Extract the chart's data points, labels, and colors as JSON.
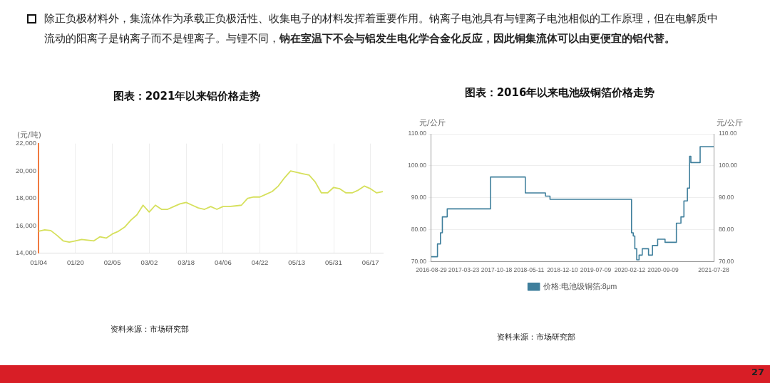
{
  "chart_data": [
    {
      "type": "other",
      "annotations": [
        "除正负极材料外，集流体作为承载正负极活性、收集电子的材料发挥着重要作用。钠离子电池具有与锂离子电池相似的工作原理，但在电解质中流动的阳离子是钠离子而不是锂离子。与锂不同，",
        "钠在室温下不会与铝发生电化学合金化反应，因此铜集流体可以由更便宜的铝代替。",
        "27"
      ]
    },
    {
      "type": "line",
      "title": "图表：2021年以来铝价格走势",
      "ylabel": "(元/吨)",
      "annotations": [
        "资料来源：市场研究部"
      ],
      "categories": [
        "01/04",
        null,
        null,
        null,
        null,
        null,
        "01/20",
        null,
        null,
        null,
        null,
        null,
        "02/05",
        null,
        null,
        null,
        null,
        null,
        "03/02",
        null,
        null,
        null,
        null,
        null,
        "03/18",
        null,
        null,
        null,
        null,
        null,
        "04/06",
        null,
        null,
        null,
        null,
        null,
        "04/22",
        null,
        null,
        null,
        null,
        null,
        "05/13",
        null,
        null,
        null,
        null,
        null,
        "05/31",
        null,
        null,
        null,
        null,
        null,
        "06/17",
        null,
        null
      ],
      "series": [
        {
          "color": "#d6e05c",
          "values": [
            15600,
            15700,
            15650,
            15300,
            14900,
            14800,
            14900,
            15000,
            14950,
            14900,
            15200,
            15100,
            15400,
            15600,
            15900,
            16400,
            16800,
            17500,
            17000,
            17500,
            17200,
            17200,
            17400,
            17600,
            17700,
            17500,
            17300,
            17200,
            17400,
            17200,
            17400,
            17400,
            17450,
            17500,
            18000,
            18100,
            18100,
            18300,
            18500,
            18900,
            19500,
            20000,
            19900,
            19800,
            19700,
            19200,
            18400,
            18400,
            18800,
            18700,
            18400,
            18400,
            18600,
            18900,
            18700,
            18400,
            18500
          ]
        }
      ],
      "ylim": [
        14000,
        22000
      ],
      "yticks": [
        {
          "value": 14000,
          "label": "14,000"
        },
        {
          "value": 16000,
          "label": "16,000"
        },
        {
          "value": 18000,
          "label": "18,000"
        },
        {
          "value": 20000,
          "label": "20,000"
        },
        {
          "value": 22000,
          "label": "22,000"
        }
      ],
      "grid": "x",
      "marker": "none",
      "legend": false
    },
    {
      "type": "step",
      "title": "图表：2016年以来电池级铜箔价格走势",
      "ylabel": "元/公斤",
      "y2label": "元/公斤",
      "annotations": [
        "资料来源：市场研究部"
      ],
      "x": [
        "2016-08-29",
        "2016-10-07",
        "2016-10-26",
        "2016-11-07",
        "2016-12-08",
        "2017-09-09",
        "2018-04-18",
        "2018-08-24",
        "2018-09-22",
        "2020-02-22",
        "2020-03-04",
        "2020-03-14",
        "2020-03-26",
        "2020-04-10",
        "2020-04-30",
        "2020-06-09",
        "2020-07-04",
        "2020-08-06",
        "2020-09-22",
        "2020-12-03",
        "2021-01-01",
        "2021-01-20",
        "2021-02-11",
        "2021-02-25",
        "2021-03-05",
        "2021-05-03",
        "2021-07-28"
      ],
      "series": [
        {
          "name": "价格:电池级铜箔:8μm",
          "color": "#3f7f9c",
          "values": [
            71.5,
            75.5,
            79,
            84,
            86.5,
            96.5,
            91.5,
            90.5,
            89.5,
            79,
            78,
            74,
            70.5,
            72,
            74,
            72,
            75,
            77,
            76,
            82,
            84,
            89,
            93,
            103,
            101,
            106,
            106
          ]
        }
      ],
      "xlim": [
        "2016-08-29",
        "2021-07-28"
      ],
      "xticks": [
        "2016-08-29",
        "2017-03-23",
        "2017-10-18",
        "2018-05-11",
        "2018-12-10",
        "2019-07-09",
        "2020-02-12",
        "2020-09-09",
        "2021-07-28"
      ],
      "ylim": [
        70,
        110
      ],
      "yticks": [
        {
          "value": 70,
          "label": "70.00"
        },
        {
          "value": 80,
          "label": "80.00"
        },
        {
          "value": 90,
          "label": "90.00"
        },
        {
          "value": 100,
          "label": "100.00"
        },
        {
          "value": 110,
          "label": "110.00"
        }
      ],
      "y2lim": [
        70,
        110
      ],
      "y2ticks": [
        {
          "value": 70,
          "label": "70.00"
        },
        {
          "value": 80,
          "label": "80.00"
        },
        {
          "value": 90,
          "label": "90.00"
        },
        {
          "value": 100,
          "label": "100.00"
        },
        {
          "value": 110,
          "label": "110.00"
        }
      ],
      "grid": "y",
      "marker": "none",
      "legend": "bottom"
    }
  ]
}
